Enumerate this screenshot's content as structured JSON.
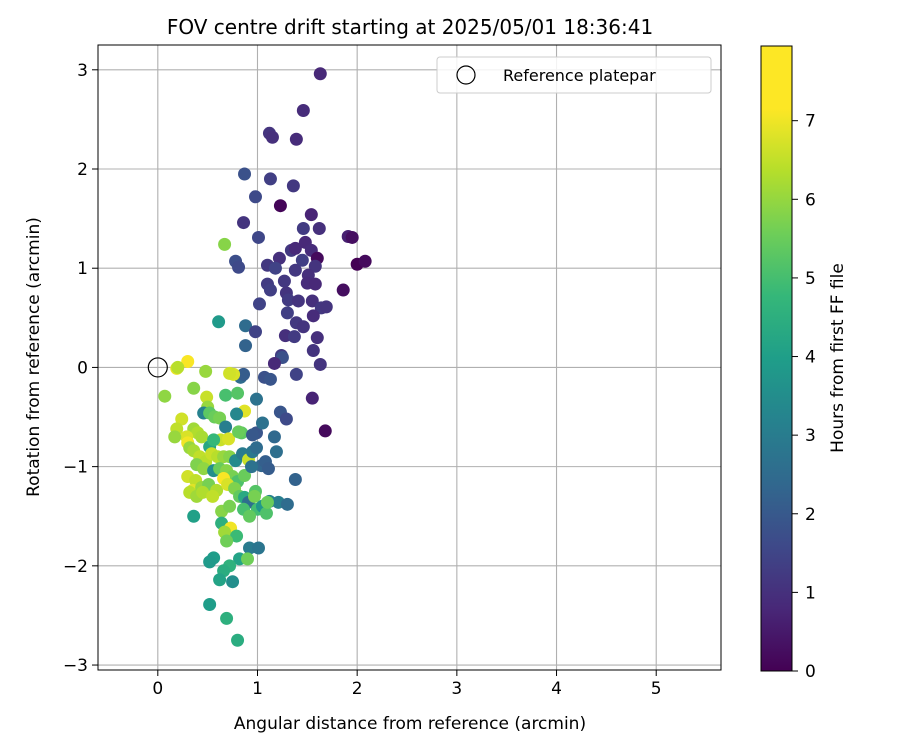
{
  "chart_data": {
    "type": "scatter",
    "title": "FOV centre drift starting at 2025/05/01 18:36:41",
    "xlabel": "Angular distance from reference (arcmin)",
    "ylabel": "Rotation from reference (arcmin)",
    "xlim": [
      -0.6,
      5.65
    ],
    "ylim": [
      -3.05,
      3.25
    ],
    "xticks": [
      0,
      1,
      2,
      3,
      4,
      5
    ],
    "yticks": [
      -3,
      -2,
      -1,
      0,
      1,
      2,
      3
    ],
    "grid": true,
    "legend": {
      "position": "top-right",
      "label": "Reference platepar"
    },
    "reference_point": {
      "x": 0,
      "y": 0
    },
    "colorbar": {
      "label": "Hours from first FF file",
      "min": 0,
      "max": 7.95,
      "ticks": [
        0,
        1,
        2,
        3,
        4,
        5,
        6,
        7
      ],
      "colormap": "viridis"
    },
    "points": [
      [
        1.63,
        2.96,
        0.9
      ],
      [
        1.46,
        2.59,
        1.0
      ],
      [
        1.12,
        2.36,
        1.2
      ],
      [
        1.15,
        2.32,
        1.1
      ],
      [
        1.39,
        2.3,
        1.0
      ],
      [
        0.87,
        1.95,
        2.0
      ],
      [
        1.13,
        1.9,
        1.5
      ],
      [
        1.36,
        1.83,
        1.3
      ],
      [
        0.98,
        1.72,
        1.8
      ],
      [
        1.23,
        1.63,
        0.1
      ],
      [
        1.54,
        1.54,
        0.8
      ],
      [
        0.86,
        1.46,
        1.2
      ],
      [
        1.46,
        1.4,
        1.4
      ],
      [
        1.62,
        1.4,
        1.1
      ],
      [
        1.01,
        1.31,
        1.7
      ],
      [
        1.91,
        1.32,
        0.7
      ],
      [
        1.95,
        1.31,
        0.3
      ],
      [
        1.48,
        1.26,
        0.9
      ],
      [
        1.34,
        1.18,
        1.3
      ],
      [
        1.38,
        1.2,
        0.9
      ],
      [
        1.54,
        1.18,
        1.0
      ],
      [
        1.22,
        1.1,
        1.1
      ],
      [
        1.6,
        1.1,
        0.2
      ],
      [
        1.45,
        1.08,
        1.5
      ],
      [
        0.78,
        1.07,
        1.9
      ],
      [
        1.1,
        1.03,
        1.3
      ],
      [
        1.18,
        1.0,
        1.6
      ],
      [
        1.58,
        1.02,
        1.2
      ],
      [
        1.38,
        0.98,
        1.3
      ],
      [
        2.0,
        1.04,
        0.0
      ],
      [
        2.08,
        1.07,
        0.2
      ],
      [
        0.81,
        1.01,
        1.8
      ],
      [
        1.51,
        0.93,
        1.1
      ],
      [
        1.27,
        0.87,
        1.3
      ],
      [
        1.5,
        0.85,
        1.0
      ],
      [
        1.1,
        0.84,
        1.4
      ],
      [
        1.58,
        0.84,
        0.9
      ],
      [
        1.13,
        0.78,
        1.5
      ],
      [
        1.29,
        0.75,
        1.2
      ],
      [
        1.86,
        0.78,
        0.3
      ],
      [
        1.31,
        0.68,
        1.4
      ],
      [
        1.41,
        0.67,
        1.2
      ],
      [
        1.55,
        0.67,
        1.1
      ],
      [
        1.02,
        0.64,
        1.6
      ],
      [
        1.64,
        0.6,
        1.3
      ],
      [
        1.69,
        0.61,
        1.2
      ],
      [
        1.3,
        0.55,
        1.5
      ],
      [
        1.56,
        0.52,
        1.0
      ],
      [
        1.39,
        0.45,
        1.3
      ],
      [
        0.88,
        0.42,
        2.8
      ],
      [
        1.46,
        0.41,
        1.2
      ],
      [
        0.98,
        0.36,
        1.6
      ],
      [
        1.28,
        0.32,
        1.1
      ],
      [
        1.37,
        0.31,
        1.4
      ],
      [
        1.6,
        0.3,
        1.1
      ],
      [
        0.88,
        0.22,
        2.5
      ],
      [
        1.56,
        0.17,
        1.2
      ],
      [
        1.24,
        0.12,
        1.4
      ],
      [
        1.25,
        0.1,
        2.0
      ],
      [
        1.63,
        0.03,
        1.2
      ],
      [
        1.17,
        0.04,
        0.9
      ],
      [
        0.61,
        0.46,
        4.3
      ],
      [
        0.67,
        1.24,
        6.5
      ],
      [
        1.39,
        -0.07,
        1.6
      ],
      [
        1.07,
        -0.1,
        2.0
      ],
      [
        1.13,
        -0.12,
        2.1
      ],
      [
        0.83,
        -0.1,
        2.8
      ],
      [
        0.86,
        -0.07,
        2.3
      ],
      [
        1.55,
        -0.31,
        0.8
      ],
      [
        0.99,
        -0.32,
        3.0
      ],
      [
        1.68,
        -0.64,
        0.2
      ],
      [
        0.19,
        -0.01,
        7.7
      ],
      [
        0.3,
        0.06,
        7.9
      ],
      [
        0.2,
        0.0,
        7.1
      ],
      [
        0.48,
        -0.04,
        6.7
      ],
      [
        0.36,
        -0.21,
        6.5
      ],
      [
        0.07,
        -0.29,
        6.6
      ],
      [
        0.49,
        -0.3,
        7.3
      ],
      [
        0.5,
        -0.4,
        6.7
      ],
      [
        0.68,
        -0.28,
        5.6
      ],
      [
        0.8,
        -0.26,
        5.8
      ],
      [
        0.76,
        -0.07,
        7.5
      ],
      [
        0.72,
        -0.06,
        7.4
      ],
      [
        0.87,
        -0.44,
        7.6
      ],
      [
        0.24,
        -0.52,
        7.4
      ],
      [
        0.46,
        -0.46,
        3.5
      ],
      [
        0.79,
        -0.47,
        3.7
      ],
      [
        0.52,
        -0.46,
        5.9
      ],
      [
        0.57,
        -0.5,
        6.1
      ],
      [
        0.62,
        -0.51,
        6.3
      ],
      [
        0.36,
        -0.62,
        6.8
      ],
      [
        0.4,
        -0.66,
        7.0
      ],
      [
        0.19,
        -0.62,
        7.2
      ],
      [
        0.29,
        -0.7,
        7.5
      ],
      [
        0.3,
        -0.76,
        7.8
      ],
      [
        0.17,
        -0.7,
        6.7
      ],
      [
        0.44,
        -0.7,
        6.9
      ],
      [
        0.68,
        -0.6,
        3.4
      ],
      [
        0.63,
        -0.73,
        7.3
      ],
      [
        0.71,
        -0.72,
        7.5
      ],
      [
        0.52,
        -0.8,
        4.7
      ],
      [
        0.56,
        -0.73,
        5.3
      ],
      [
        0.84,
        -0.66,
        5.9
      ],
      [
        0.81,
        -0.65,
        6.1
      ],
      [
        0.99,
        -0.66,
        2.1
      ],
      [
        0.95,
        -0.68,
        2.2
      ],
      [
        1.05,
        -0.56,
        3.0
      ],
      [
        1.23,
        -0.45,
        2.1
      ],
      [
        1.29,
        -0.52,
        1.8
      ],
      [
        1.17,
        -0.7,
        2.7
      ],
      [
        0.32,
        -0.81,
        6.7
      ],
      [
        0.36,
        -0.84,
        6.9
      ],
      [
        0.42,
        -0.9,
        7.2
      ],
      [
        0.48,
        -0.95,
        7.1
      ],
      [
        0.54,
        -0.87,
        7.3
      ],
      [
        0.6,
        -0.9,
        7.1
      ],
      [
        0.66,
        -0.9,
        6.7
      ],
      [
        0.72,
        -0.9,
        6.5
      ],
      [
        0.78,
        -0.94,
        3.8
      ],
      [
        0.85,
        -0.87,
        3.3
      ],
      [
        0.91,
        -0.93,
        7.3
      ],
      [
        0.95,
        -0.85,
        3.2
      ],
      [
        0.99,
        -0.81,
        2.8
      ],
      [
        1.04,
        -0.99,
        2.6
      ],
      [
        1.08,
        -0.95,
        2.4
      ],
      [
        1.11,
        -1.02,
        2.3
      ],
      [
        1.19,
        -0.85,
        2.9
      ],
      [
        0.39,
        -0.98,
        6.4
      ],
      [
        0.46,
        -1.02,
        6.6
      ],
      [
        0.56,
        -1.04,
        3.9
      ],
      [
        0.62,
        -1.02,
        6.1
      ],
      [
        0.69,
        -1.04,
        6.5
      ],
      [
        0.75,
        -1.1,
        6.3
      ],
      [
        0.8,
        -1.15,
        5.7
      ],
      [
        0.87,
        -1.09,
        6.1
      ],
      [
        0.94,
        -1.0,
        3.0
      ],
      [
        0.3,
        -1.1,
        7.4
      ],
      [
        0.38,
        -1.14,
        7.2
      ],
      [
        0.35,
        -1.24,
        7.6
      ],
      [
        0.32,
        -1.26,
        7.1
      ],
      [
        0.44,
        -1.21,
        6.7
      ],
      [
        0.51,
        -1.18,
        6.3
      ],
      [
        0.59,
        -1.24,
        7.0
      ],
      [
        0.66,
        -1.12,
        7.9
      ],
      [
        0.7,
        -1.18,
        7.5
      ],
      [
        0.77,
        -1.22,
        6.4
      ],
      [
        0.82,
        -1.3,
        6.0
      ],
      [
        0.87,
        -1.31,
        4.8
      ],
      [
        0.91,
        -1.36,
        2.9
      ],
      [
        0.98,
        -1.25,
        5.8
      ],
      [
        0.97,
        -1.3,
        6.3
      ],
      [
        1.0,
        -1.43,
        5.5
      ],
      [
        1.05,
        -1.4,
        4.2
      ],
      [
        1.12,
        -1.35,
        3.5
      ],
      [
        1.21,
        -1.36,
        3.4
      ],
      [
        1.3,
        -1.38,
        2.8
      ],
      [
        1.38,
        -1.13,
        2.5
      ],
      [
        0.39,
        -1.3,
        6.8
      ],
      [
        0.45,
        -1.26,
        7.0
      ],
      [
        0.55,
        -1.3,
        7.2
      ],
      [
        0.36,
        -1.5,
        4.5
      ],
      [
        0.64,
        -1.45,
        6.5
      ],
      [
        0.72,
        -1.4,
        6.3
      ],
      [
        0.86,
        -1.43,
        5.6
      ],
      [
        0.92,
        -1.5,
        6.0
      ],
      [
        1.09,
        -1.47,
        5.7
      ],
      [
        1.1,
        -1.36,
        6.1
      ],
      [
        0.64,
        -1.57,
        5.0
      ],
      [
        0.73,
        -1.62,
        7.8
      ],
      [
        0.67,
        -1.66,
        6.8
      ],
      [
        0.79,
        -1.7,
        5.4
      ],
      [
        0.92,
        -1.82,
        3.3
      ],
      [
        1.01,
        -1.82,
        3.1
      ],
      [
        0.69,
        -1.75,
        6.2
      ],
      [
        0.56,
        -1.92,
        4.4
      ],
      [
        0.52,
        -1.96,
        4.3
      ],
      [
        0.82,
        -1.93,
        4.6
      ],
      [
        0.9,
        -1.93,
        6.2
      ],
      [
        0.72,
        -2.0,
        5.1
      ],
      [
        0.66,
        -2.05,
        4.9
      ],
      [
        0.62,
        -2.14,
        4.6
      ],
      [
        0.75,
        -2.16,
        3.9
      ],
      [
        0.52,
        -2.39,
        4.4
      ],
      [
        0.69,
        -2.53,
        5.0
      ],
      [
        0.8,
        -2.75,
        4.9
      ]
    ]
  }
}
